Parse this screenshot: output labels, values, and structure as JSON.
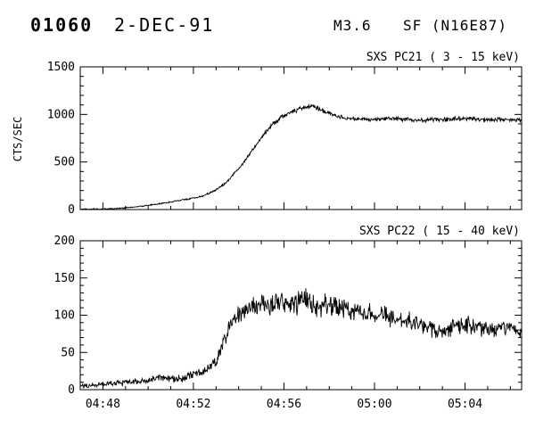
{
  "header": {
    "event_number": "01060",
    "date": "2-DEC-91",
    "goes_class": "M3.6",
    "flare_type_location": "SF (N16E87)"
  },
  "xaxis": {
    "range_minutes": [
      47,
      66.5
    ],
    "major_ticks": [
      {
        "t": 48,
        "label": "04:48"
      },
      {
        "t": 52,
        "label": "04:52"
      },
      {
        "t": 56,
        "label": "04:56"
      },
      {
        "t": 60,
        "label": "05:00"
      },
      {
        "t": 64,
        "label": "05:04"
      }
    ],
    "minor_step": 1
  },
  "line_color": "#000000",
  "chart_data": [
    {
      "type": "line",
      "title": "SXS PC21  (  3 - 15 keV)",
      "ylabel": "CTS/SEC",
      "ylim": [
        0,
        1500
      ],
      "yticks": [
        0,
        500,
        1000,
        1500
      ],
      "y_minor_step": 100,
      "x_range": [
        47,
        66.5
      ],
      "samples": 900,
      "noise_base": 8,
      "noise_scale": 0.022,
      "noise_seed": 42,
      "control_points": [
        [
          47.0,
          3
        ],
        [
          48.0,
          6
        ],
        [
          48.5,
          10
        ],
        [
          49.0,
          18
        ],
        [
          49.5,
          30
        ],
        [
          50.0,
          45
        ],
        [
          50.5,
          62
        ],
        [
          51.0,
          80
        ],
        [
          51.5,
          100
        ],
        [
          52.0,
          120
        ],
        [
          52.5,
          150
        ],
        [
          53.0,
          205
        ],
        [
          53.3,
          255
        ],
        [
          53.6,
          320
        ],
        [
          54.0,
          430
        ],
        [
          54.3,
          520
        ],
        [
          54.6,
          620
        ],
        [
          55.0,
          760
        ],
        [
          55.3,
          850
        ],
        [
          55.6,
          920
        ],
        [
          56.0,
          990
        ],
        [
          56.3,
          1030
        ],
        [
          56.6,
          1050
        ],
        [
          57.0,
          1080
        ],
        [
          57.3,
          1085
        ],
        [
          57.6,
          1050
        ],
        [
          58.0,
          1010
        ],
        [
          58.4,
          975
        ],
        [
          59.0,
          955
        ],
        [
          59.5,
          950
        ],
        [
          60.0,
          945
        ],
        [
          60.5,
          955
        ],
        [
          61.0,
          960
        ],
        [
          61.5,
          945
        ],
        [
          62.0,
          935
        ],
        [
          62.5,
          945
        ],
        [
          63.0,
          950
        ],
        [
          63.5,
          955
        ],
        [
          64.0,
          960
        ],
        [
          64.5,
          950
        ],
        [
          65.0,
          940
        ],
        [
          65.5,
          945
        ],
        [
          66.0,
          950
        ],
        [
          66.5,
          940
        ]
      ]
    },
    {
      "type": "line",
      "title": "SXS PC22  ( 15 - 40 keV)",
      "ylabel": "",
      "ylim": [
        0,
        200
      ],
      "yticks": [
        0,
        50,
        100,
        150,
        200
      ],
      "y_minor_step": 10,
      "x_range": [
        47,
        66.5
      ],
      "samples": 900,
      "noise_base": 4,
      "noise_scale": 0.12,
      "noise_seed": 1337,
      "control_points": [
        [
          47.0,
          5
        ],
        [
          47.5,
          6
        ],
        [
          48.0,
          7
        ],
        [
          48.5,
          8
        ],
        [
          49.0,
          9
        ],
        [
          49.5,
          11
        ],
        [
          50.0,
          13
        ],
        [
          50.4,
          17
        ],
        [
          50.8,
          15
        ],
        [
          51.2,
          14
        ],
        [
          51.6,
          16
        ],
        [
          52.0,
          20
        ],
        [
          52.4,
          24
        ],
        [
          52.8,
          30
        ],
        [
          53.1,
          45
        ],
        [
          53.4,
          70
        ],
        [
          53.7,
          88
        ],
        [
          54.0,
          100
        ],
        [
          54.3,
          106
        ],
        [
          54.6,
          110
        ],
        [
          55.0,
          113
        ],
        [
          55.4,
          116
        ],
        [
          55.8,
          118
        ],
        [
          56.2,
          114
        ],
        [
          56.6,
          117
        ],
        [
          57.0,
          120
        ],
        [
          57.4,
          113
        ],
        [
          57.8,
          115
        ],
        [
          58.2,
          112
        ],
        [
          58.6,
          110
        ],
        [
          59.0,
          108
        ],
        [
          59.5,
          104
        ],
        [
          60.0,
          100
        ],
        [
          60.5,
          97
        ],
        [
          61.0,
          94
        ],
        [
          61.5,
          92
        ],
        [
          62.0,
          89
        ],
        [
          62.5,
          83
        ],
        [
          63.0,
          78
        ],
        [
          63.5,
          84
        ],
        [
          64.0,
          88
        ],
        [
          64.5,
          83
        ],
        [
          65.0,
          80
        ],
        [
          65.5,
          83
        ],
        [
          66.0,
          85
        ],
        [
          66.5,
          77
        ]
      ]
    }
  ]
}
